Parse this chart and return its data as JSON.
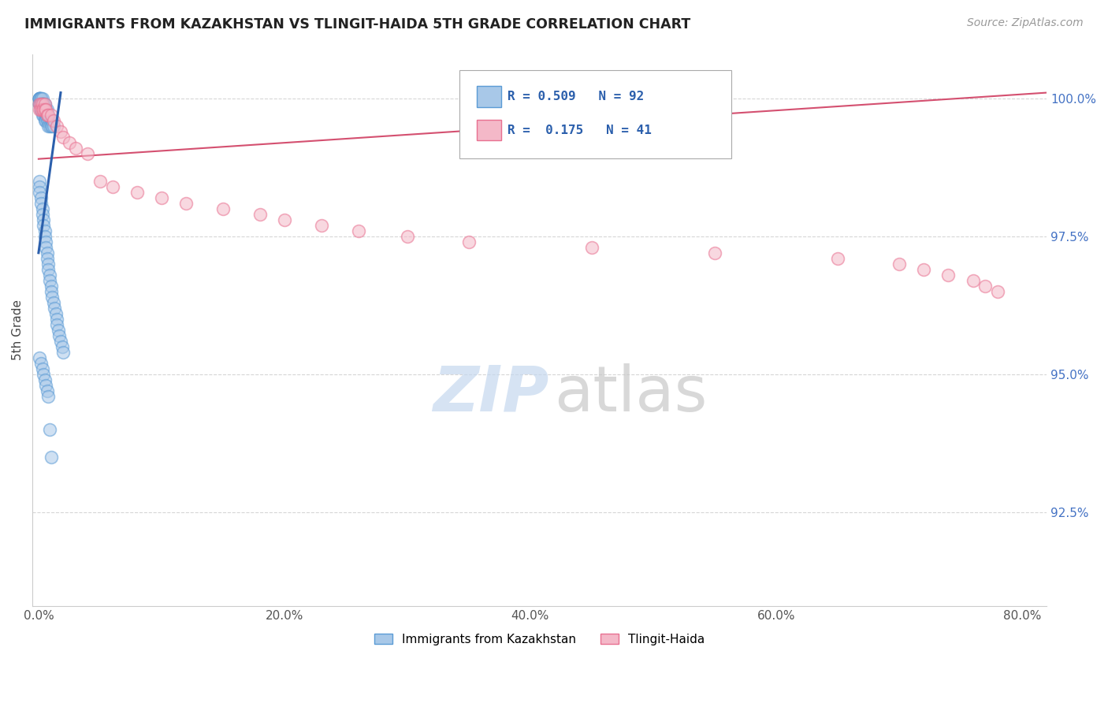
{
  "title": "IMMIGRANTS FROM KAZAKHSTAN VS TLINGIT-HAIDA 5TH GRADE CORRELATION CHART",
  "source": "Source: ZipAtlas.com",
  "ylabel": "5th Grade",
  "xlim": [
    -0.005,
    0.82
  ],
  "ylim": [
    0.908,
    1.008
  ],
  "ytick_values": [
    0.925,
    0.95,
    0.975,
    1.0
  ],
  "ytick_labels": [
    "92.5%",
    "95.0%",
    "97.5%",
    "100.0%"
  ],
  "xtick_values": [
    0.0,
    0.2,
    0.4,
    0.6,
    0.8
  ],
  "xtick_labels": [
    "0.0%",
    "20.0%",
    "40.0%",
    "60.0%",
    "80.0%"
  ],
  "color_blue": "#a8c8e8",
  "color_blue_edge": "#5b9bd5",
  "color_pink": "#f4b8c8",
  "color_pink_edge": "#e87090",
  "color_trend_blue": "#2b5fac",
  "color_trend_pink": "#d45070",
  "legend_blue_r": "R = 0.509",
  "legend_blue_n": "N = 92",
  "legend_pink_r": "R =  0.175",
  "legend_pink_n": "N = 41",
  "blue_x": [
    0.001,
    0.001,
    0.001,
    0.001,
    0.001,
    0.001,
    0.001,
    0.001,
    0.001,
    0.001,
    0.002,
    0.002,
    0.002,
    0.002,
    0.002,
    0.002,
    0.002,
    0.002,
    0.002,
    0.002,
    0.003,
    0.003,
    0.003,
    0.003,
    0.003,
    0.003,
    0.004,
    0.004,
    0.004,
    0.004,
    0.005,
    0.005,
    0.005,
    0.005,
    0.006,
    0.006,
    0.006,
    0.007,
    0.007,
    0.007,
    0.008,
    0.008,
    0.008,
    0.009,
    0.009,
    0.01,
    0.01,
    0.011,
    0.011,
    0.012,
    0.001,
    0.001,
    0.001,
    0.002,
    0.002,
    0.003,
    0.003,
    0.004,
    0.004,
    0.005,
    0.005,
    0.006,
    0.006,
    0.007,
    0.007,
    0.008,
    0.008,
    0.009,
    0.009,
    0.01,
    0.01,
    0.011,
    0.012,
    0.013,
    0.014,
    0.015,
    0.015,
    0.016,
    0.017,
    0.018,
    0.019,
    0.02,
    0.001,
    0.002,
    0.003,
    0.004,
    0.005,
    0.006,
    0.007,
    0.008,
    0.009,
    0.01
  ],
  "blue_y": [
    1.0,
    1.0,
    1.0,
    1.0,
    1.0,
    1.0,
    1.0,
    1.0,
    0.999,
    0.999,
    1.0,
    1.0,
    1.0,
    0.999,
    0.999,
    0.999,
    0.998,
    0.998,
    0.998,
    0.998,
    1.0,
    0.999,
    0.999,
    0.998,
    0.998,
    0.997,
    0.999,
    0.999,
    0.998,
    0.997,
    0.999,
    0.998,
    0.997,
    0.996,
    0.998,
    0.997,
    0.996,
    0.998,
    0.997,
    0.996,
    0.997,
    0.996,
    0.995,
    0.996,
    0.995,
    0.996,
    0.995,
    0.996,
    0.995,
    0.995,
    0.985,
    0.984,
    0.983,
    0.982,
    0.981,
    0.98,
    0.979,
    0.978,
    0.977,
    0.976,
    0.975,
    0.974,
    0.973,
    0.972,
    0.971,
    0.97,
    0.969,
    0.968,
    0.967,
    0.966,
    0.965,
    0.964,
    0.963,
    0.962,
    0.961,
    0.96,
    0.959,
    0.958,
    0.957,
    0.956,
    0.955,
    0.954,
    0.953,
    0.952,
    0.951,
    0.95,
    0.949,
    0.948,
    0.947,
    0.946,
    0.94,
    0.935
  ],
  "pink_x": [
    0.001,
    0.001,
    0.002,
    0.002,
    0.003,
    0.003,
    0.004,
    0.005,
    0.005,
    0.006,
    0.007,
    0.008,
    0.01,
    0.012,
    0.015,
    0.018,
    0.02,
    0.025,
    0.03,
    0.04,
    0.05,
    0.06,
    0.08,
    0.1,
    0.12,
    0.15,
    0.18,
    0.2,
    0.23,
    0.26,
    0.3,
    0.35,
    0.45,
    0.55,
    0.65,
    0.7,
    0.72,
    0.74,
    0.76,
    0.77,
    0.78
  ],
  "pink_y": [
    0.999,
    0.998,
    0.999,
    0.998,
    0.999,
    0.998,
    0.998,
    0.999,
    0.998,
    0.998,
    0.997,
    0.997,
    0.997,
    0.996,
    0.995,
    0.994,
    0.993,
    0.992,
    0.991,
    0.99,
    0.985,
    0.984,
    0.983,
    0.982,
    0.981,
    0.98,
    0.979,
    0.978,
    0.977,
    0.976,
    0.975,
    0.974,
    0.973,
    0.972,
    0.971,
    0.97,
    0.969,
    0.968,
    0.967,
    0.966,
    0.965
  ],
  "watermark_zip_color": "#c5d8ef",
  "watermark_atlas_color": "#c8c8c8"
}
